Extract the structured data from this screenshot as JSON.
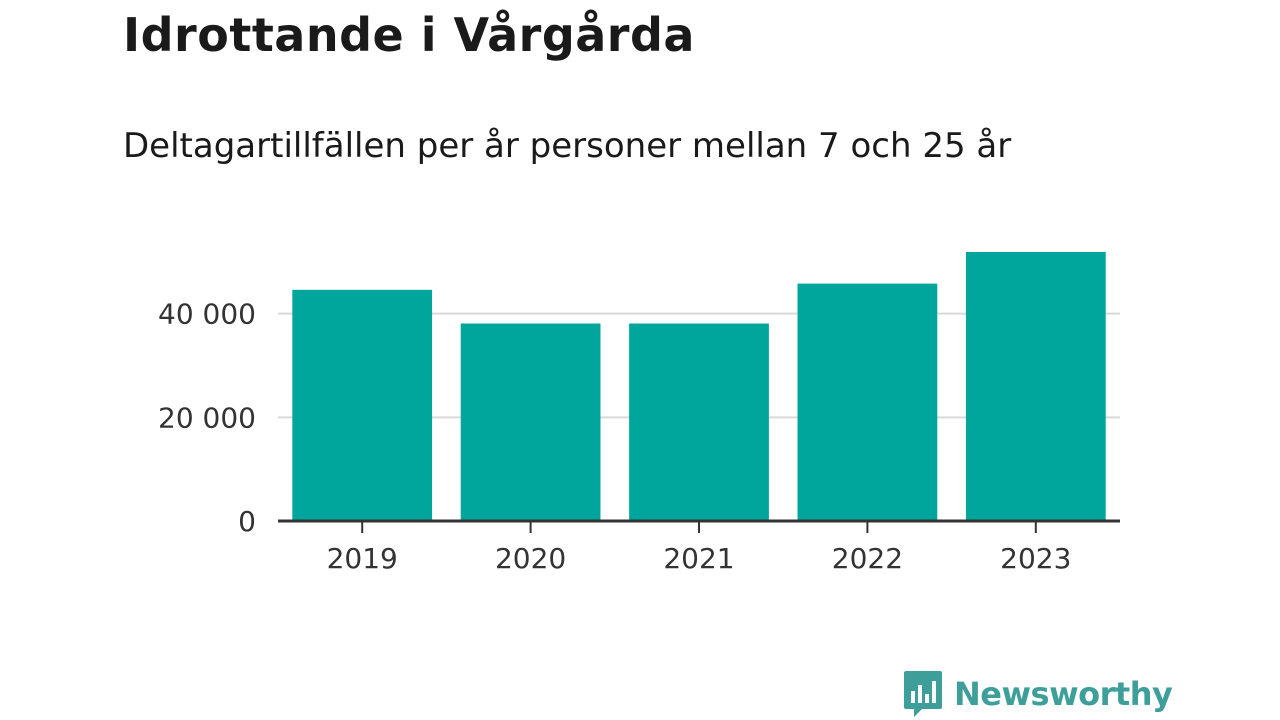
{
  "header": {
    "title": "Idrottande i Vårgårda",
    "subtitle": "Deltagartillfällen per år personer mellan 7 och 25 år"
  },
  "brand": {
    "name": "Newsworthy",
    "color": "#3d9e9a"
  },
  "chart_data": {
    "type": "bar",
    "categories": [
      "2019",
      "2020",
      "2021",
      "2022",
      "2023"
    ],
    "values": [
      44600,
      38100,
      38100,
      45800,
      51900
    ],
    "ylim": [
      0,
      52000
    ],
    "yticks": [
      0,
      20000,
      40000
    ],
    "ytick_labels": [
      "0",
      "20 000",
      "40 000"
    ],
    "bar_color": "#00a59b",
    "grid": true
  }
}
